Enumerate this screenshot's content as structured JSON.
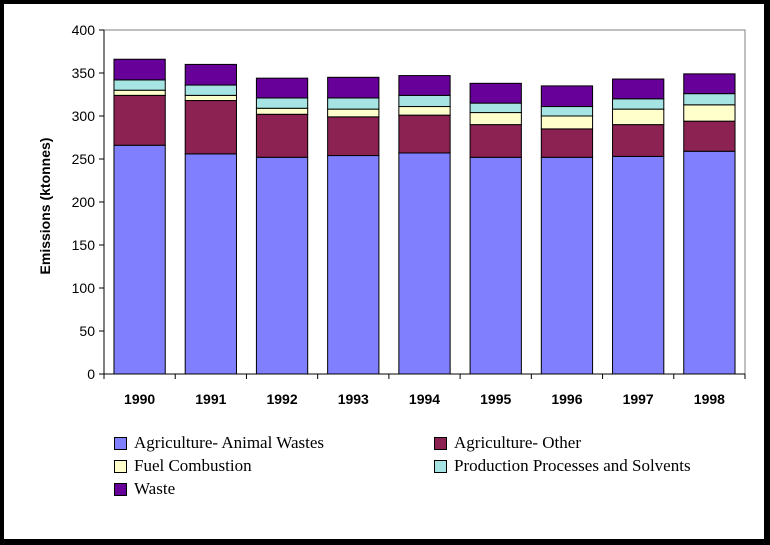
{
  "chart_data": {
    "type": "bar",
    "stacked": true,
    "title": "",
    "xlabel": "",
    "ylabel": "Emissions (ktonnes)",
    "ylim": [
      0,
      400
    ],
    "yticks": [
      "0",
      "50",
      "100",
      "150",
      "200",
      "250",
      "300",
      "350",
      "400"
    ],
    "grid": false,
    "legend_position": "bottom",
    "categories": [
      "1990",
      "1991",
      "1992",
      "1993",
      "1994",
      "1995",
      "1996",
      "1997",
      "1998"
    ],
    "series": [
      {
        "name": "Agriculture- Animal Wastes",
        "color": "#8080ff",
        "values": [
          266,
          256,
          252,
          254,
          257,
          252,
          252,
          253,
          259
        ]
      },
      {
        "name": "Agriculture- Other",
        "color": "#8b2252",
        "values": [
          58,
          62,
          50,
          45,
          44,
          38,
          33,
          37,
          35
        ]
      },
      {
        "name": "Fuel Combustion",
        "color": "#ffffcc",
        "values": [
          6,
          6,
          7,
          9,
          10,
          14,
          15,
          18,
          19
        ]
      },
      {
        "name": "Production Processes and Solvents",
        "color": "#a6e4e4",
        "values": [
          12,
          12,
          12,
          13,
          13,
          11,
          11,
          12,
          13
        ]
      },
      {
        "name": "Waste",
        "color": "#660099",
        "values": [
          24,
          24,
          23,
          24,
          23,
          23,
          24,
          23,
          23
        ]
      }
    ]
  }
}
